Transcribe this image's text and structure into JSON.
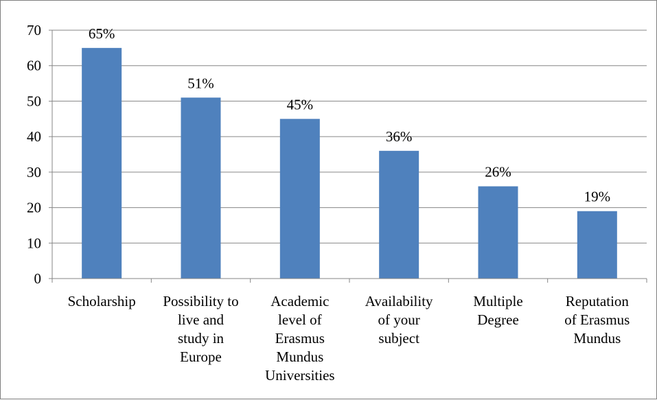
{
  "chart_data": {
    "type": "bar",
    "categories": [
      "Scholarship",
      "Possibility to live and study in Europe",
      "Academic level of Erasmus Mundus Universities",
      "Availability of your subject",
      "Multiple Degree",
      "Reputation of Erasmus Mundus"
    ],
    "category_lines": [
      [
        "Scholarship"
      ],
      [
        "Possibility to",
        "live and",
        "study in",
        "Europe"
      ],
      [
        "Academic",
        "level of",
        "Erasmus",
        "Mundus",
        "Universities"
      ],
      [
        "Availability",
        "of your",
        "subject"
      ],
      [
        "Multiple",
        "Degree"
      ],
      [
        "Reputation",
        "of Erasmus",
        "Mundus"
      ]
    ],
    "values": [
      65,
      51,
      45,
      36,
      26,
      19
    ],
    "data_labels": [
      "65%",
      "51%",
      "45%",
      "36%",
      "26%",
      "19%"
    ],
    "yticks": [
      "0",
      "10",
      "20",
      "30",
      "40",
      "50",
      "60",
      "70"
    ],
    "ylim": [
      0,
      70
    ],
    "grid": true,
    "legend": "none",
    "bar_color": "#4f81bd",
    "grid_color": "#868686"
  }
}
